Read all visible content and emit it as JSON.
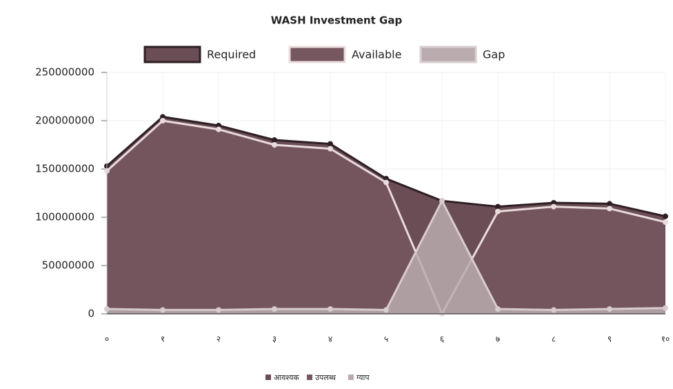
{
  "chart_data": {
    "type": "area",
    "title": "WASH Investment Gap",
    "categories": [
      "०",
      "१",
      "२",
      "३",
      "४",
      "५",
      "६",
      "७",
      "८",
      "९",
      "१०"
    ],
    "series": [
      {
        "name": "Required",
        "color": "#6a4d55",
        "line": "#2e1f24",
        "values": [
          153000000,
          204000000,
          195000000,
          180000000,
          176000000,
          140000000,
          117000000,
          111000000,
          115000000,
          114000000,
          101000000
        ]
      },
      {
        "name": "Available",
        "color": "#76575f",
        "line": "#eadcdd",
        "values": [
          148000000,
          200000000,
          191000000,
          175000000,
          171000000,
          136000000,
          0,
          106000000,
          111000000,
          109000000,
          95000000
        ]
      },
      {
        "name": "Gap",
        "color": "#b9abae",
        "line": "#d8cccf",
        "values": [
          5000000,
          4000000,
          4000000,
          5000000,
          5000000,
          4000000,
          117000000,
          5000000,
          4000000,
          5000000,
          6000000
        ]
      }
    ],
    "ylim": [
      0,
      250000000
    ],
    "yticks": [
      0,
      50000000,
      100000000,
      150000000,
      200000000,
      250000000
    ],
    "grid": true,
    "legend_local": [
      "आवश्यक",
      "उपलब्ध",
      "ग्याप"
    ]
  }
}
